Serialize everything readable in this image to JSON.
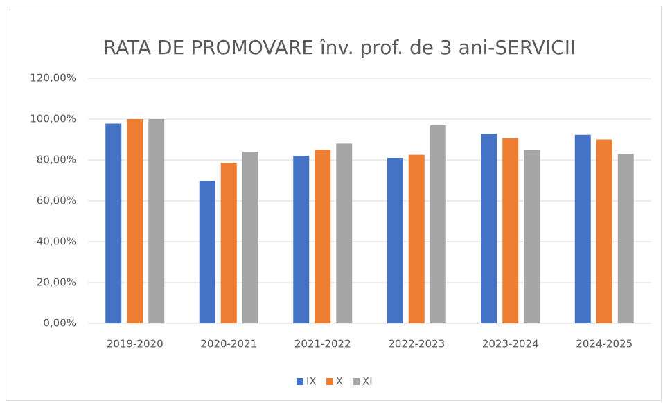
{
  "chart_data": {
    "type": "bar",
    "title": "RATA DE PROMOVARE înv. prof. de 3 ani-SERVICII",
    "categories": [
      "2019-2020",
      "2020-2021",
      "2021-2022",
      "2022-2023",
      "2023-2024",
      "2024-2025"
    ],
    "series": [
      {
        "name": "IX",
        "color": "#4472c4",
        "values": [
          97.8,
          69.8,
          82,
          81,
          92.8,
          92.3
        ]
      },
      {
        "name": "X",
        "color": "#ed7d31",
        "values": [
          100,
          78.6,
          85,
          82.5,
          90.6,
          90
        ]
      },
      {
        "name": "XI",
        "color": "#a5a5a5",
        "values": [
          100,
          84,
          88,
          97,
          85,
          83
        ]
      }
    ],
    "ylim": [
      0,
      120
    ],
    "yticks": [
      {
        "value": 0,
        "label": "0,00%"
      },
      {
        "value": 20,
        "label": "20,00%"
      },
      {
        "value": 40,
        "label": "40,00%"
      },
      {
        "value": 60,
        "label": "60,00%"
      },
      {
        "value": 80,
        "label": "80,00%"
      },
      {
        "value": 100,
        "label": "100,00%"
      },
      {
        "value": 120,
        "label": "120,00%"
      }
    ],
    "grid": true,
    "legend": "bottom"
  }
}
